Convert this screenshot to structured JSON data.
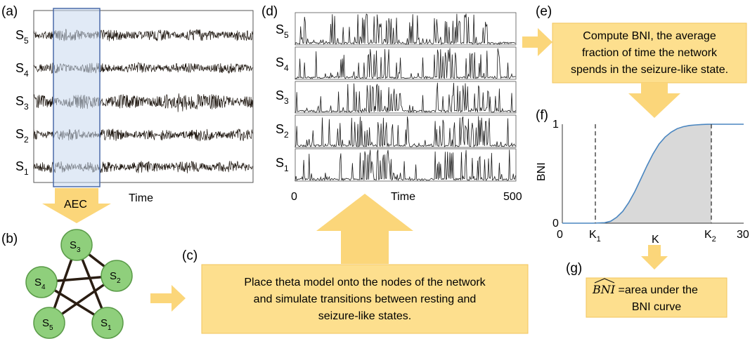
{
  "panels": {
    "a": "(a)",
    "b": "(b)",
    "c": "(c)",
    "d": "(d)",
    "e": "(e)",
    "f": "(f)",
    "g": "(g)"
  },
  "panel_a": {
    "channels": [
      {
        "base": "S",
        "sub": "5"
      },
      {
        "base": "S",
        "sub": "4"
      },
      {
        "base": "S",
        "sub": "3"
      },
      {
        "base": "S",
        "sub": "2"
      },
      {
        "base": "S",
        "sub": "1"
      }
    ],
    "xlabel": "Time",
    "arrow_label": "AEC"
  },
  "panel_b": {
    "nodes": [
      {
        "id": "n3",
        "base": "S",
        "sub": "3"
      },
      {
        "id": "n2",
        "base": "S",
        "sub": "2"
      },
      {
        "id": "n4",
        "base": "S",
        "sub": "4"
      },
      {
        "id": "n5",
        "base": "S",
        "sub": "5"
      },
      {
        "id": "n1",
        "base": "S",
        "sub": "1"
      }
    ],
    "edges": [
      [
        "n3",
        "n2"
      ],
      [
        "n3",
        "n1"
      ],
      [
        "n3",
        "n5"
      ],
      [
        "n4",
        "n2"
      ],
      [
        "n4",
        "n1"
      ],
      [
        "n5",
        "n2"
      ]
    ]
  },
  "panel_c": {
    "lines": [
      "Place theta model onto the nodes of the network",
      "and simulate transitions between resting and",
      "seizure-like states."
    ]
  },
  "panel_d": {
    "channels": [
      {
        "base": "S",
        "sub": "5"
      },
      {
        "base": "S",
        "sub": "4"
      },
      {
        "base": "S",
        "sub": "3"
      },
      {
        "base": "S",
        "sub": "2"
      },
      {
        "base": "S",
        "sub": "1"
      }
    ],
    "xlabel": "Time",
    "xmin_label": "0",
    "xmax_label": "500"
  },
  "panel_e": {
    "lines": [
      "Compute BNI, the average",
      "fraction of time the network",
      "spends in the seizure-like state."
    ]
  },
  "panel_f": {
    "ylabel": "BNI",
    "xlabel": "K",
    "y_ticks": [
      "0",
      "1"
    ],
    "x_ticks": [
      "0",
      "30"
    ],
    "k1": {
      "base": "K",
      "sub": "1"
    },
    "k2": {
      "base": "K",
      "sub": "2"
    },
    "colors": {
      "curve": "#4a86c0",
      "fill": "#d9d9d9"
    }
  },
  "chart_data": {
    "type": "line",
    "title": "",
    "xlabel": "K",
    "ylabel": "BNI",
    "xlim": [
      0,
      30
    ],
    "ylim": [
      0,
      1
    ],
    "x": [
      0,
      5,
      7,
      8,
      9,
      10,
      11,
      12,
      13,
      14,
      15,
      16,
      17,
      18,
      19,
      20,
      21,
      22,
      23,
      24,
      25,
      28,
      30
    ],
    "series": [
      {
        "values": [
          0,
          0,
          0.005,
          0.02,
          0.06,
          0.12,
          0.21,
          0.32,
          0.45,
          0.58,
          0.7,
          0.8,
          0.87,
          0.92,
          0.955,
          0.975,
          0.987,
          0.993,
          0.997,
          0.999,
          1.0,
          1.0,
          1.0
        ]
      }
    ],
    "vlines": [
      "K1",
      "K2"
    ],
    "shaded": "area under curve between K1 and K2"
  },
  "panel_g": {
    "formula_label": "BNI",
    "text_suffix": " =area under the",
    "line2": "BNI curve"
  },
  "colors": {
    "box_fill": "#fddf8e",
    "box_stroke": "#f2c45e",
    "arrow_fill": "#fbd67a",
    "node_fill": "#8fcf7c",
    "node_stroke": "#5a9b48",
    "aec_fill": "#c9d8ef",
    "aec_stroke": "#4a6aa8"
  }
}
